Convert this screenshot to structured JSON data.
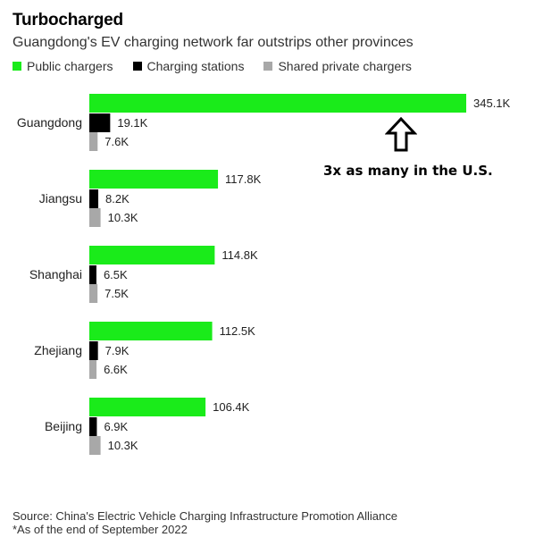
{
  "title": "Turbocharged",
  "subtitle": "Guangdong's EV charging network far outstrips other provinces",
  "colors": {
    "public": "#1aeb1a",
    "stations": "#000000",
    "shared": "#a8a8a8"
  },
  "annotation": {
    "text": "3x as many in the U.S.",
    "icon": "up-arrow-outline-icon"
  },
  "source": {
    "line1": "Source: China's Electric Vehicle Charging Infrastructure Promotion Alliance",
    "line2": "*As of the end of September 2022"
  },
  "chart_data": {
    "type": "bar",
    "orientation": "horizontal",
    "title": "Turbocharged",
    "subtitle": "Guangdong's EV charging network far outstrips other provinces",
    "categories": [
      "Guangdong",
      "Jiangsu",
      "Shanghai",
      "Zhejiang",
      "Beijing"
    ],
    "series": [
      {
        "name": "Public chargers",
        "values": [
          345.1,
          117.8,
          114.8,
          112.5,
          106.4
        ],
        "labels": [
          "345.1K",
          "117.8K",
          "114.8K",
          "112.5K",
          "106.4K"
        ]
      },
      {
        "name": "Charging stations",
        "values": [
          19.1,
          8.2,
          6.5,
          7.9,
          6.9
        ],
        "labels": [
          "19.1K",
          "8.2K",
          "6.5K",
          "7.9K",
          "6.9K"
        ]
      },
      {
        "name": "Shared private chargers",
        "values": [
          7.6,
          10.3,
          7.5,
          6.6,
          10.3
        ],
        "labels": [
          "7.6K",
          "10.3K",
          "7.5K",
          "6.6K",
          "10.3K"
        ]
      }
    ],
    "xlim": [
      0,
      345.1
    ],
    "legend_position": "top-left",
    "grid": false
  }
}
